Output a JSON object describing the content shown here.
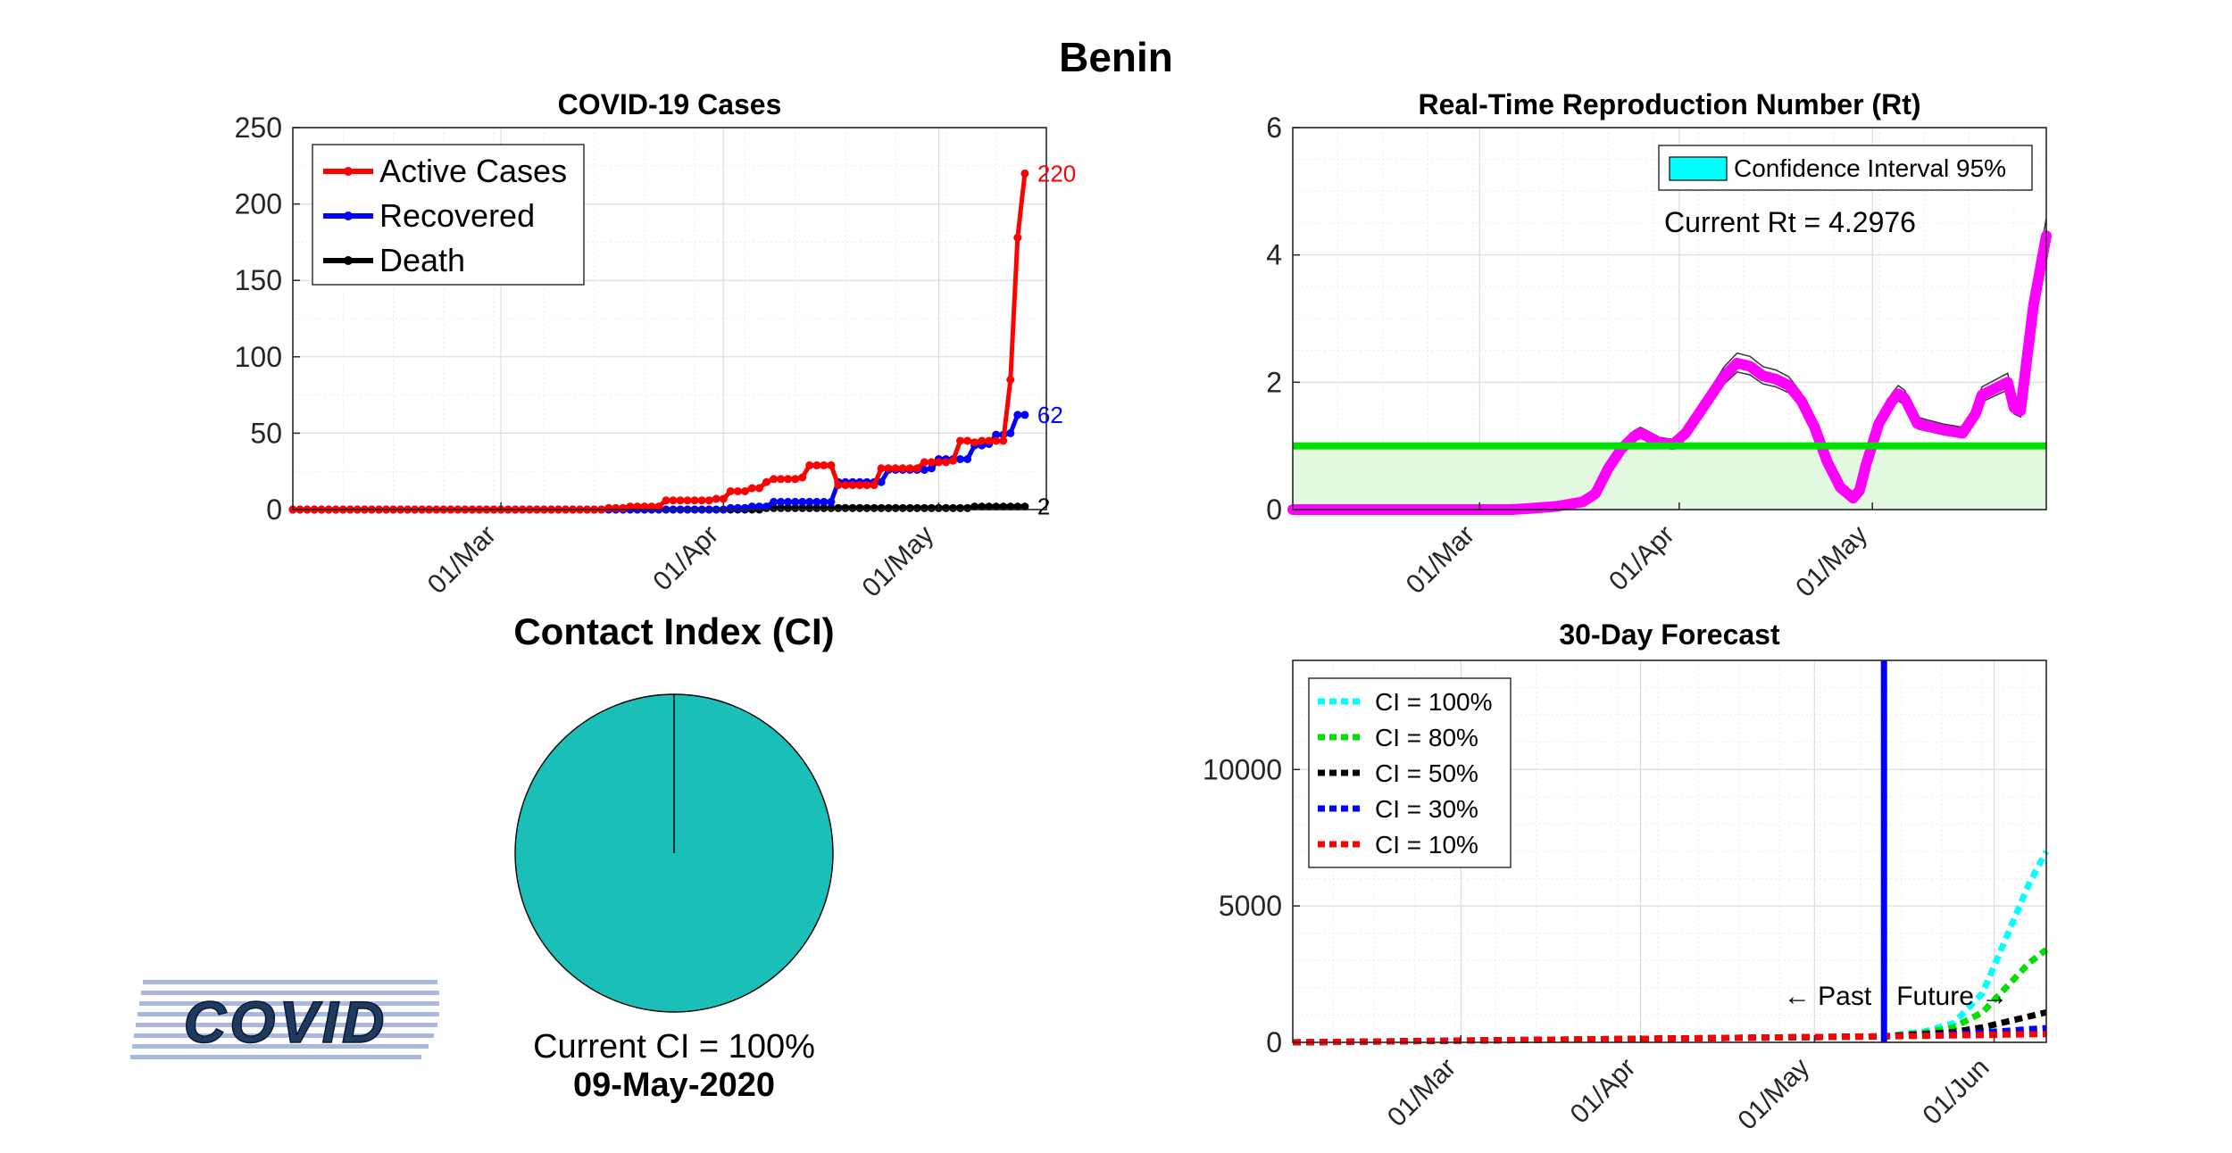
{
  "page": {
    "title": "Benin"
  },
  "colors": {
    "active": "#ff0000",
    "recovered": "#0000ff",
    "death": "#000000",
    "rt": "#ff00ff",
    "threshold": "#00e000",
    "ci_fill": "#00ffff",
    "pie": "#1abfb8",
    "cyan": "#00ffff",
    "green": "#00e000",
    "blue": "#0000ff",
    "red": "#ff0000",
    "black": "#000000"
  },
  "chart_data": [
    {
      "id": "cases",
      "type": "line",
      "title": "COVID-19 Cases",
      "xlabel": "",
      "ylabel": "",
      "x_start": "2020-02-01",
      "x_ticks": [
        "01/Mar",
        "01/Apr",
        "01/May"
      ],
      "ylim": [
        0,
        250
      ],
      "y_ticks": [
        0,
        50,
        100,
        150,
        200,
        250
      ],
      "grid": true,
      "legend_position": "top-left",
      "end_labels": {
        "active": "220",
        "recovered": "62",
        "death": "2"
      },
      "series": [
        {
          "key": "active",
          "name": "Active Cases",
          "points": [
            [
              "2020-02-01",
              0
            ],
            [
              "2020-03-15",
              0
            ],
            [
              "2020-03-16",
              1
            ],
            [
              "2020-03-19",
              2
            ],
            [
              "2020-03-24",
              6
            ],
            [
              "2020-03-31",
              7
            ],
            [
              "2020-04-02",
              12
            ],
            [
              "2020-04-05",
              14
            ],
            [
              "2020-04-07",
              18
            ],
            [
              "2020-04-08",
              20
            ],
            [
              "2020-04-12",
              21
            ],
            [
              "2020-04-13",
              29
            ],
            [
              "2020-04-17",
              16
            ],
            [
              "2020-04-22",
              16
            ],
            [
              "2020-04-23",
              27
            ],
            [
              "2020-04-29",
              31
            ],
            [
              "2020-05-03",
              32
            ],
            [
              "2020-05-04",
              45
            ],
            [
              "2020-05-06",
              44
            ],
            [
              "2020-05-07",
              45
            ],
            [
              "2020-05-10",
              45
            ],
            [
              "2020-05-11",
              85
            ],
            [
              "2020-05-12",
              178
            ],
            [
              "2020-05-13",
              220
            ]
          ]
        },
        {
          "key": "recovered",
          "name": "Recovered",
          "points": [
            [
              "2020-02-01",
              0
            ],
            [
              "2020-04-02",
              1
            ],
            [
              "2020-04-05",
              2
            ],
            [
              "2020-04-08",
              5
            ],
            [
              "2020-04-16",
              5
            ],
            [
              "2020-04-17",
              18
            ],
            [
              "2020-04-23",
              18
            ],
            [
              "2020-04-24",
              26
            ],
            [
              "2020-04-30",
              27
            ],
            [
              "2020-05-01",
              33
            ],
            [
              "2020-05-05",
              33
            ],
            [
              "2020-05-06",
              42
            ],
            [
              "2020-05-08",
              43
            ],
            [
              "2020-05-09",
              49
            ],
            [
              "2020-05-11",
              50
            ],
            [
              "2020-05-12",
              62
            ],
            [
              "2020-05-13",
              62
            ]
          ]
        },
        {
          "key": "death",
          "name": "Death",
          "points": [
            [
              "2020-02-01",
              0
            ],
            [
              "2020-04-07",
              1
            ],
            [
              "2020-05-06",
              2
            ],
            [
              "2020-05-13",
              2
            ]
          ]
        }
      ]
    },
    {
      "id": "rt",
      "type": "line",
      "title": "Real-Time Reproduction Number (Rt)",
      "x_start": "2020-02-01",
      "x_ticks": [
        "01/Mar",
        "01/Apr",
        "01/May"
      ],
      "ylim": [
        0,
        6
      ],
      "y_ticks": [
        0,
        2,
        4,
        6
      ],
      "grid": true,
      "legend_position": "top-right",
      "legend_label": "Confidence Interval 95%",
      "annotation": "Current Rt = 4.2976",
      "threshold": 1,
      "series": [
        {
          "key": "rt",
          "name": "",
          "points": [
            [
              "2020-02-01",
              0
            ],
            [
              "2020-03-06",
              0
            ],
            [
              "2020-03-09",
              0.02
            ],
            [
              "2020-03-13",
              0.05
            ],
            [
              "2020-03-17",
              0.12
            ],
            [
              "2020-03-19",
              0.25
            ],
            [
              "2020-03-21",
              0.65
            ],
            [
              "2020-03-23",
              0.95
            ],
            [
              "2020-03-25",
              1.15
            ],
            [
              "2020-03-26",
              1.2
            ],
            [
              "2020-03-27",
              1.15
            ],
            [
              "2020-03-29",
              1.05
            ],
            [
              "2020-03-31",
              1.02
            ],
            [
              "2020-04-02",
              1.2
            ],
            [
              "2020-04-04",
              1.5
            ],
            [
              "2020-04-06",
              1.8
            ],
            [
              "2020-04-08",
              2.1
            ],
            [
              "2020-04-10",
              2.3
            ],
            [
              "2020-04-12",
              2.25
            ],
            [
              "2020-04-14",
              2.1
            ],
            [
              "2020-04-16",
              2.05
            ],
            [
              "2020-04-18",
              1.95
            ],
            [
              "2020-04-20",
              1.7
            ],
            [
              "2020-04-22",
              1.3
            ],
            [
              "2020-04-24",
              0.75
            ],
            [
              "2020-04-26",
              0.35
            ],
            [
              "2020-04-28",
              0.18
            ],
            [
              "2020-04-29",
              0.3
            ],
            [
              "2020-04-30",
              0.7
            ],
            [
              "2020-05-02",
              1.35
            ],
            [
              "2020-05-04",
              1.7
            ],
            [
              "2020-05-05",
              1.82
            ],
            [
              "2020-05-06",
              1.75
            ],
            [
              "2020-05-08",
              1.35
            ],
            [
              "2020-05-12",
              1.25
            ],
            [
              "2020-05-15",
              1.2
            ],
            [
              "2020-05-17",
              1.5
            ],
            [
              "2020-05-18",
              1.8
            ],
            [
              "2020-05-20",
              1.9
            ],
            [
              "2020-05-22",
              2.0
            ],
            [
              "2020-05-23",
              1.6
            ],
            [
              "2020-05-24",
              1.55
            ],
            [
              "2020-05-26",
              3.2
            ],
            [
              "2020-05-28",
              4.3
            ]
          ]
        }
      ]
    },
    {
      "id": "ci",
      "type": "pie",
      "title": "Contact Index (CI)",
      "values": [
        100
      ],
      "value_label": "Current CI = 100%",
      "date": "09-May-2020"
    },
    {
      "id": "forecast",
      "type": "line",
      "title": "30-Day Forecast",
      "x_start": "2020-02-01",
      "x_ticks": [
        "01/Mar",
        "01/Apr",
        "01/May",
        "01/Jun"
      ],
      "ylim": [
        0,
        14000
      ],
      "y_ticks": [
        0,
        5000,
        10000
      ],
      "grid": true,
      "legend_position": "top-left",
      "divider_date": "2020-05-13",
      "past_label": "← Past",
      "future_label": "Future →",
      "series": [
        {
          "key": "cyan",
          "name": "CI = 100%",
          "points": [
            [
              "2020-02-01",
              0
            ],
            [
              "2020-05-13",
              220
            ],
            [
              "2020-05-20",
              400
            ],
            [
              "2020-05-25",
              700
            ],
            [
              "2020-05-30",
              1800
            ],
            [
              "2020-06-03",
              3800
            ],
            [
              "2020-06-07",
              5800
            ],
            [
              "2020-06-10",
              7000
            ]
          ]
        },
        {
          "key": "green",
          "name": "CI = 80%",
          "points": [
            [
              "2020-02-01",
              0
            ],
            [
              "2020-05-13",
              220
            ],
            [
              "2020-05-20",
              350
            ],
            [
              "2020-05-25",
              550
            ],
            [
              "2020-05-30",
              1100
            ],
            [
              "2020-06-03",
              2000
            ],
            [
              "2020-06-07",
              2900
            ],
            [
              "2020-06-10",
              3400
            ]
          ]
        },
        {
          "key": "black",
          "name": "CI = 50%",
          "points": [
            [
              "2020-02-01",
              0
            ],
            [
              "2020-05-13",
              220
            ],
            [
              "2020-05-20",
              300
            ],
            [
              "2020-05-25",
              380
            ],
            [
              "2020-05-30",
              550
            ],
            [
              "2020-06-03",
              750
            ],
            [
              "2020-06-07",
              950
            ],
            [
              "2020-06-10",
              1100
            ]
          ]
        },
        {
          "key": "blue",
          "name": "CI = 30%",
          "points": [
            [
              "2020-02-01",
              0
            ],
            [
              "2020-05-13",
              220
            ],
            [
              "2020-05-20",
              260
            ],
            [
              "2020-05-25",
              300
            ],
            [
              "2020-05-30",
              360
            ],
            [
              "2020-06-03",
              420
            ],
            [
              "2020-06-07",
              480
            ],
            [
              "2020-06-10",
              520
            ]
          ]
        },
        {
          "key": "red",
          "name": "CI = 10%",
          "points": [
            [
              "2020-02-01",
              0
            ],
            [
              "2020-05-13",
              220
            ],
            [
              "2020-05-20",
              240
            ],
            [
              "2020-05-25",
              255
            ],
            [
              "2020-05-30",
              270
            ],
            [
              "2020-06-03",
              285
            ],
            [
              "2020-06-07",
              295
            ],
            [
              "2020-06-10",
              300
            ]
          ]
        }
      ]
    }
  ],
  "logo": {
    "text": "COVID",
    "icon": "sim-covid-logo"
  }
}
